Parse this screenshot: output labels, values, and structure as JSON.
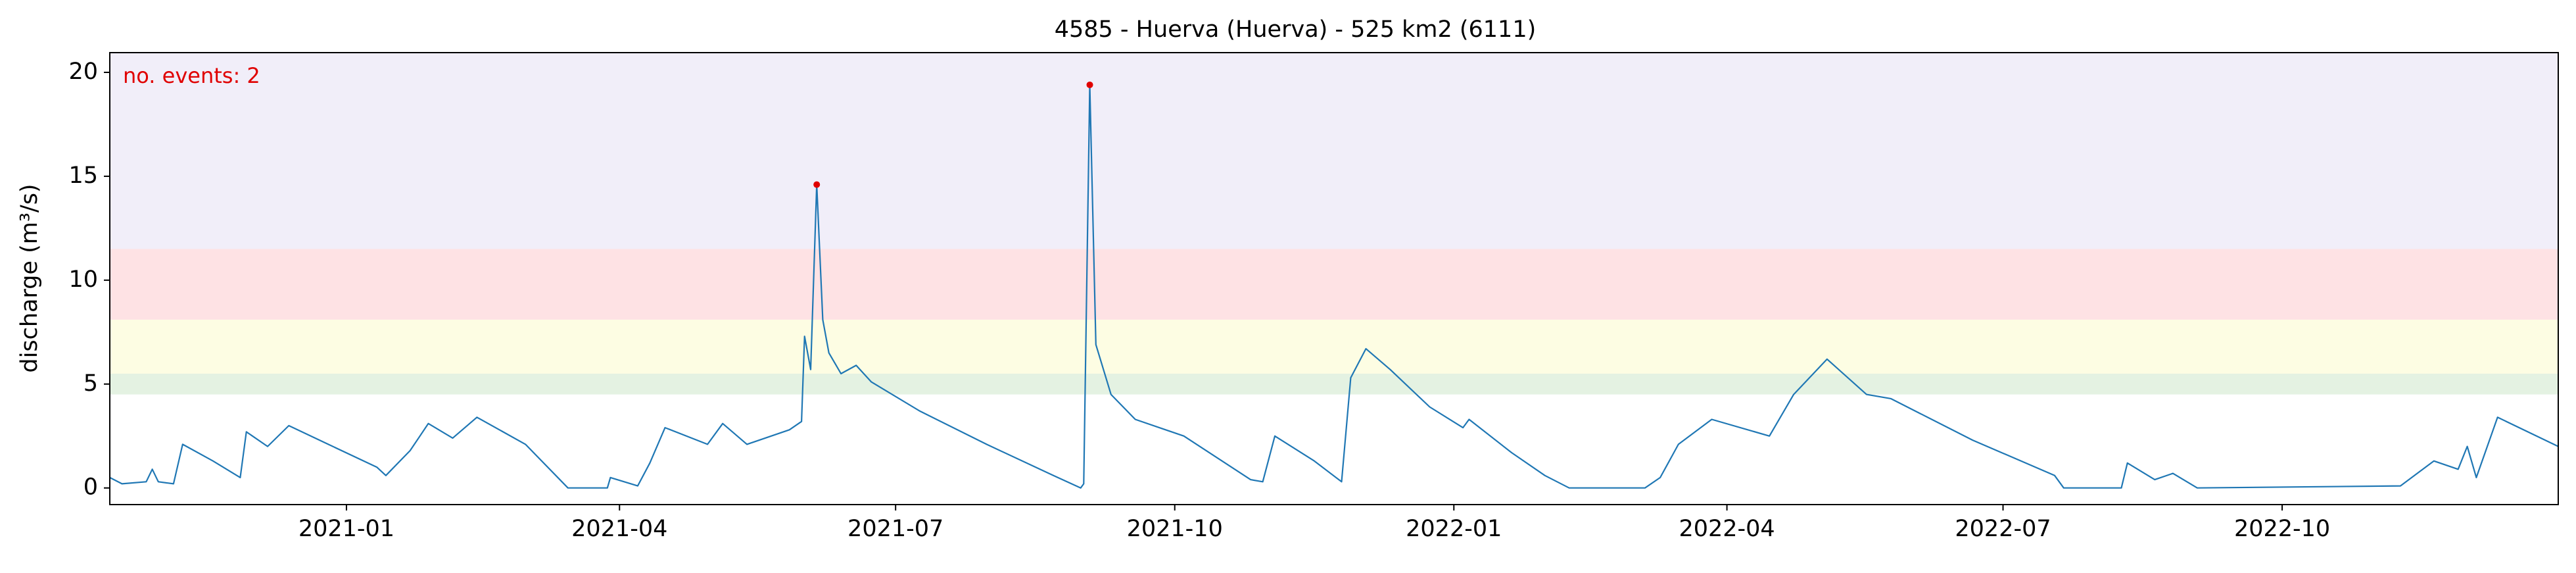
{
  "chart_data": {
    "type": "line",
    "title": "4585 - Huerva (Huerva) - 525 km2 (6111)",
    "y_label": "discharge (m³/s)",
    "annotation": "no. events: 2",
    "annotation_color": "#e00000",
    "xlim": [
      "2020-10-15",
      "2022-12-31"
    ],
    "xticks": [
      "2021-01",
      "2021-04",
      "2021-07",
      "2021-10",
      "2022-01",
      "2022-04",
      "2022-07",
      "2022-10"
    ],
    "ylim": [
      -0.8,
      20.95
    ],
    "yticks": [
      0,
      5,
      10,
      15,
      20
    ],
    "bands": [
      {
        "from": 4.5,
        "to": 5.5,
        "color": "#e4f2e2"
      },
      {
        "from": 5.5,
        "to": 8.1,
        "color": "#fdfde3"
      },
      {
        "from": 8.1,
        "to": 11.5,
        "color": "#fee2e4"
      },
      {
        "from": 11.5,
        "to": 20.95,
        "color": "#f1eef9"
      }
    ],
    "x": [
      "2020-10-15",
      "2020-10-19",
      "2020-10-27",
      "2020-10-29",
      "2020-10-31",
      "2020-11-05",
      "2020-11-08",
      "2020-11-18",
      "2020-11-27",
      "2020-11-29",
      "2020-12-06",
      "2020-12-13",
      "2020-12-26",
      "2021-01-11",
      "2021-01-14",
      "2021-01-22",
      "2021-01-28",
      "2021-02-05",
      "2021-02-13",
      "2021-03-01",
      "2021-03-15",
      "2021-03-28",
      "2021-03-29",
      "2021-04-07",
      "2021-04-11",
      "2021-04-16",
      "2021-04-30",
      "2021-05-05",
      "2021-05-13",
      "2021-05-27",
      "2021-05-31",
      "2021-06-01",
      "2021-06-03",
      "2021-06-05",
      "2021-06-07",
      "2021-06-09",
      "2021-06-13",
      "2021-06-18",
      "2021-06-23",
      "2021-07-09",
      "2021-07-31",
      "2021-08-22",
      "2021-08-31",
      "2021-09-01",
      "2021-09-03",
      "2021-09-05",
      "2021-09-10",
      "2021-09-18",
      "2021-10-04",
      "2021-10-26",
      "2021-10-30",
      "2021-11-03",
      "2021-11-16",
      "2021-11-25",
      "2021-11-28",
      "2021-12-03",
      "2021-12-11",
      "2021-12-24",
      "2022-01-04",
      "2022-01-06",
      "2022-01-20",
      "2022-01-31",
      "2022-02-08",
      "2022-03-05",
      "2022-03-10",
      "2022-03-16",
      "2022-03-27",
      "2022-04-15",
      "2022-04-23",
      "2022-05-04",
      "2022-05-17",
      "2022-05-25",
      "2022-06-21",
      "2022-07-18",
      "2022-07-21",
      "2022-08-09",
      "2022-08-11",
      "2022-08-20",
      "2022-08-26",
      "2022-09-03",
      "2022-11-09",
      "2022-11-20",
      "2022-11-28",
      "2022-12-01",
      "2022-12-04",
      "2022-12-11",
      "2022-12-31"
    ],
    "series": [
      {
        "color": "#1f77b4",
        "values": [
          0.5,
          0.2,
          0.3,
          0.9,
          0.3,
          0.2,
          2.1,
          1.3,
          0.5,
          2.7,
          2.0,
          3.0,
          2.1,
          1.0,
          0.6,
          1.8,
          3.1,
          2.4,
          3.4,
          2.1,
          0,
          0,
          0.5,
          0.1,
          1.2,
          2.9,
          2.1,
          3.1,
          2.1,
          2.8,
          3.2,
          7.3,
          5.7,
          14.6,
          8.1,
          6.5,
          5.5,
          5.9,
          5.1,
          3.7,
          2.1,
          0.6,
          0,
          0.2,
          19.4,
          6.9,
          4.5,
          3.3,
          2.5,
          0.4,
          0.3,
          2.5,
          1.3,
          0.3,
          5.3,
          6.7,
          5.7,
          3.9,
          2.9,
          3.3,
          1.7,
          0.6,
          0,
          0,
          0.5,
          2.1,
          3.3,
          2.5,
          4.5,
          6.2,
          4.5,
          4.3,
          2.3,
          0.6,
          0,
          0,
          1.2,
          0.4,
          0.7,
          0,
          0.1,
          1.3,
          0.9,
          2.0,
          0.5,
          3.4,
          2.0
        ]
      }
    ],
    "events": {
      "x": [
        "2021-06-05",
        "2021-09-03"
      ],
      "values": [
        14.6,
        19.4
      ],
      "color": "#e00000"
    }
  }
}
